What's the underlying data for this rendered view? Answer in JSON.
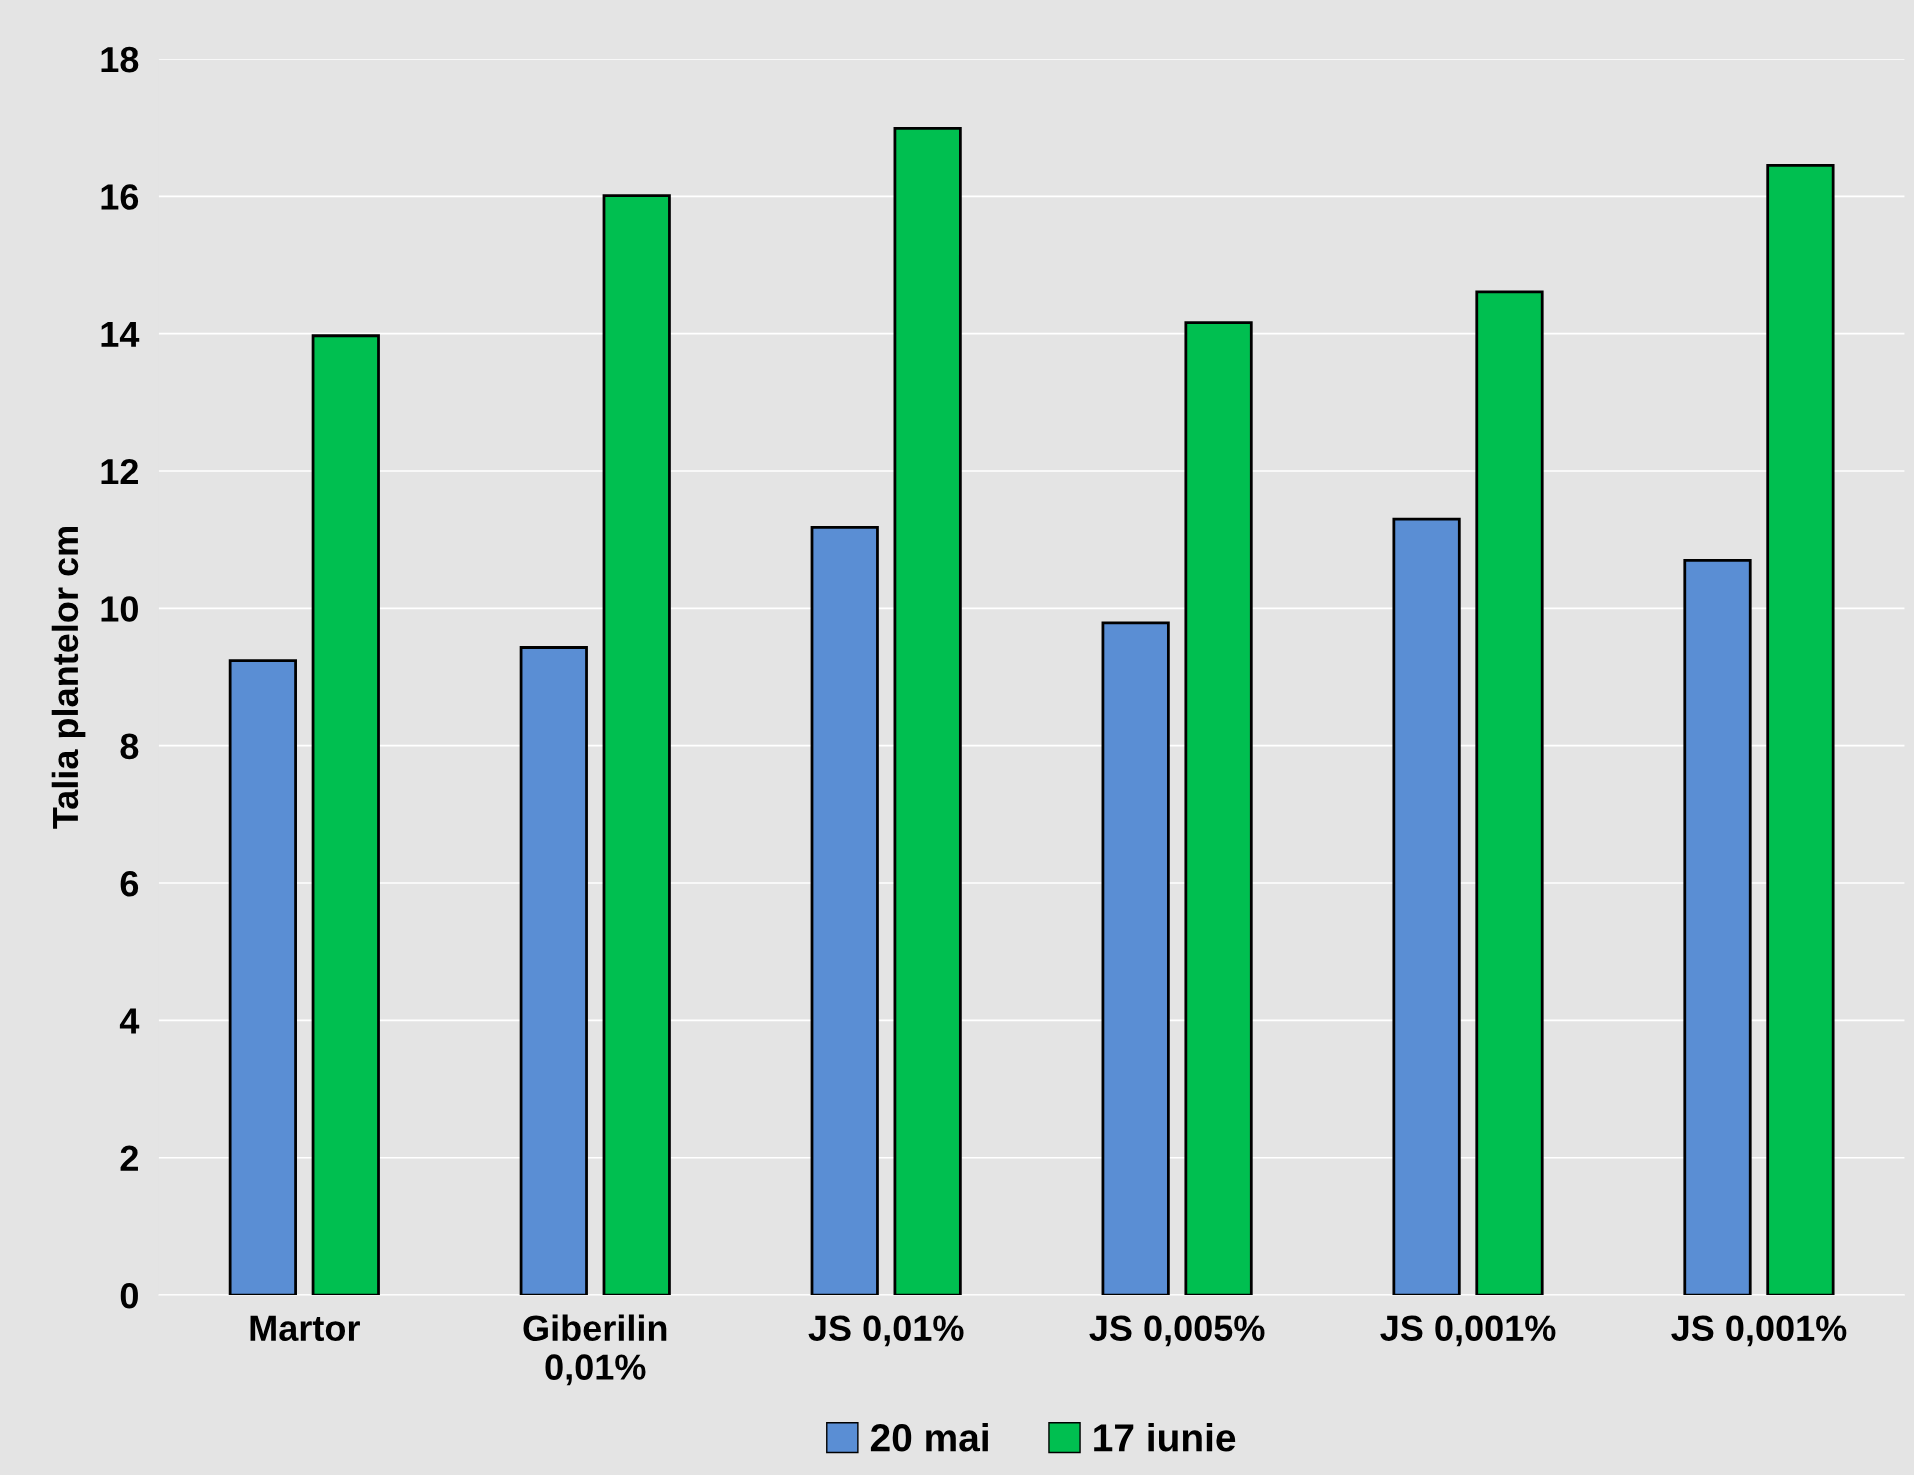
{
  "chart_data": {
    "type": "bar",
    "ylabel": "Talia plantelor cm",
    "categories": [
      "Martor",
      "Giberilin\n0,01%",
      "JS 0,01%",
      "JS 0,005%",
      "JS 0,001%",
      "JS 0,001%"
    ],
    "series": [
      {
        "name": "20 mai",
        "color": "#5a8ed4",
        "values": [
          9.24,
          9.43,
          11.18,
          9.79,
          11.3,
          10.7
        ]
      },
      {
        "name": "17 iunie",
        "color": "#00bf50",
        "values": [
          13.97,
          16.01,
          16.99,
          14.16,
          14.61,
          16.45
        ]
      }
    ],
    "ylim": [
      0,
      18
    ],
    "yticks": [
      0,
      2,
      4,
      6,
      8,
      10,
      12,
      14,
      16,
      18
    ],
    "grid": "y",
    "legend": "bottom"
  }
}
